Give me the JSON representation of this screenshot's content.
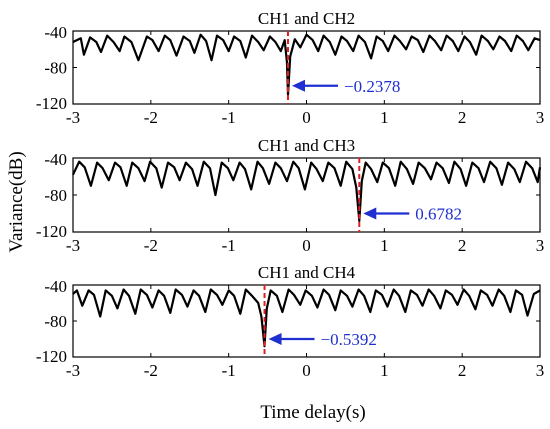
{
  "figure": {
    "ylabel": "Variance(dB)",
    "xlabel": "Time delay(s)"
  },
  "colors": {
    "signal": "#000000",
    "marker_line": "#e02020",
    "annotation": "#1f2fd0"
  },
  "chart_data": [
    {
      "type": "line",
      "title": "CH1 and CH2",
      "xlim": [
        -3,
        3
      ],
      "ylim": [
        -120,
        -40
      ],
      "xticks": [
        "-3",
        "-2",
        "-1",
        "0",
        "1",
        "2",
        "3"
      ],
      "yticks": [
        "-40",
        "-80",
        "-120"
      ],
      "peak_x": -0.2378,
      "peak_label": "−0.2378",
      "series": [
        {
          "x": [
            -3.0,
            -2.9,
            -2.86,
            -2.78,
            -2.7,
            -2.64,
            -2.56,
            -2.48,
            -2.4,
            -2.34,
            -2.25,
            -2.16,
            -2.05,
            -1.98,
            -1.9,
            -1.82,
            -1.75,
            -1.67,
            -1.58,
            -1.5,
            -1.44,
            -1.36,
            -1.29,
            -1.22,
            -1.15,
            -1.07,
            -1.0,
            -0.93,
            -0.85,
            -0.78,
            -0.7,
            -0.62,
            -0.55,
            -0.47,
            -0.4,
            -0.33,
            -0.28,
            -0.25,
            -0.2378,
            -0.21,
            -0.15,
            -0.08,
            0.0,
            0.08,
            0.15,
            0.22,
            0.3,
            0.37,
            0.45,
            0.52,
            0.6,
            0.67,
            0.75,
            0.83,
            0.9,
            0.98,
            1.05,
            1.13,
            1.2,
            1.28,
            1.35,
            1.43,
            1.5,
            1.58,
            1.65,
            1.73,
            1.8,
            1.88,
            1.95,
            2.03,
            2.1,
            2.18,
            2.25,
            2.33,
            2.4,
            2.48,
            2.55,
            2.63,
            2.7,
            2.78,
            2.85,
            2.93,
            3.0
          ],
          "y": [
            -52,
            -48,
            -66,
            -47,
            -52,
            -63,
            -45,
            -52,
            -62,
            -46,
            -52,
            -72,
            -46,
            -50,
            -62,
            -45,
            -50,
            -67,
            -46,
            -51,
            -64,
            -44,
            -51,
            -72,
            -45,
            -50,
            -62,
            -46,
            -51,
            -69,
            -45,
            -52,
            -61,
            -46,
            -52,
            -62,
            -50,
            -75,
            -110,
            -68,
            -49,
            -58,
            -44,
            -50,
            -62,
            -45,
            -52,
            -66,
            -46,
            -51,
            -62,
            -45,
            -52,
            -70,
            -46,
            -51,
            -62,
            -45,
            -51,
            -60,
            -46,
            -50,
            -63,
            -45,
            -51,
            -61,
            -45,
            -51,
            -62,
            -46,
            -52,
            -66,
            -45,
            -51,
            -60,
            -46,
            -51,
            -62,
            -45,
            -51,
            -61,
            -48,
            -50
          ]
        }
      ]
    },
    {
      "type": "line",
      "title": "CH1 and CH3",
      "xlim": [
        -3,
        3
      ],
      "ylim": [
        -120,
        -40
      ],
      "xticks": [
        "-3",
        "-2",
        "-1",
        "0",
        "1",
        "2",
        "3"
      ],
      "yticks": [
        "-40",
        "-80",
        "-120"
      ],
      "peak_x": 0.6782,
      "peak_label": "0.6782",
      "series": [
        {
          "x": [
            -3.0,
            -2.92,
            -2.85,
            -2.77,
            -2.69,
            -2.62,
            -2.54,
            -2.46,
            -2.39,
            -2.31,
            -2.24,
            -2.16,
            -2.08,
            -2.01,
            -1.93,
            -1.86,
            -1.78,
            -1.7,
            -1.63,
            -1.55,
            -1.47,
            -1.4,
            -1.32,
            -1.24,
            -1.17,
            -1.09,
            -1.01,
            -0.94,
            -0.86,
            -0.79,
            -0.71,
            -0.63,
            -0.56,
            -0.48,
            -0.4,
            -0.33,
            -0.25,
            -0.17,
            -0.1,
            -0.02,
            0.06,
            0.13,
            0.21,
            0.28,
            0.36,
            0.44,
            0.51,
            0.59,
            0.64,
            0.6782,
            0.71,
            0.76,
            0.83,
            0.91,
            0.98,
            1.06,
            1.14,
            1.21,
            1.29,
            1.37,
            1.44,
            1.52,
            1.6,
            1.67,
            1.75,
            1.83,
            1.9,
            1.98,
            2.05,
            2.13,
            2.21,
            2.28,
            2.36,
            2.44,
            2.51,
            2.59,
            2.67,
            2.74,
            2.82,
            2.9,
            2.97,
            3.0
          ],
          "y": [
            -58,
            -44,
            -50,
            -70,
            -45,
            -51,
            -64,
            -45,
            -50,
            -70,
            -45,
            -51,
            -65,
            -44,
            -51,
            -72,
            -45,
            -50,
            -64,
            -45,
            -52,
            -70,
            -44,
            -51,
            -80,
            -45,
            -51,
            -64,
            -45,
            -52,
            -74,
            -44,
            -51,
            -68,
            -45,
            -51,
            -65,
            -44,
            -51,
            -74,
            -45,
            -52,
            -65,
            -45,
            -51,
            -70,
            -44,
            -52,
            -72,
            -108,
            -65,
            -45,
            -52,
            -66,
            -45,
            -51,
            -70,
            -44,
            -52,
            -68,
            -45,
            -51,
            -63,
            -45,
            -51,
            -67,
            -44,
            -52,
            -70,
            -45,
            -51,
            -66,
            -44,
            -51,
            -69,
            -45,
            -52,
            -66,
            -44,
            -51,
            -66,
            -50
          ]
        }
      ]
    },
    {
      "type": "line",
      "title": "CH1 and CH4",
      "xlim": [
        -3,
        3
      ],
      "ylim": [
        -120,
        -40
      ],
      "xticks": [
        "-3",
        "-2",
        "-1",
        "0",
        "1",
        "2",
        "3"
      ],
      "yticks": [
        "-40",
        "-80",
        "-120"
      ],
      "peak_x": -0.5392,
      "peak_label": "−0.5392",
      "series": [
        {
          "x": [
            -3.0,
            -2.95,
            -2.88,
            -2.8,
            -2.73,
            -2.65,
            -2.58,
            -2.5,
            -2.43,
            -2.35,
            -2.28,
            -2.2,
            -2.13,
            -2.05,
            -1.98,
            -1.9,
            -1.83,
            -1.75,
            -1.68,
            -1.6,
            -1.53,
            -1.45,
            -1.38,
            -1.3,
            -1.23,
            -1.15,
            -1.08,
            -1.0,
            -0.93,
            -0.85,
            -0.78,
            -0.7,
            -0.62,
            -0.58,
            -0.5392,
            -0.51,
            -0.46,
            -0.38,
            -0.31,
            -0.23,
            -0.16,
            -0.08,
            -0.01,
            0.07,
            0.14,
            0.22,
            0.29,
            0.37,
            0.44,
            0.52,
            0.59,
            0.67,
            0.74,
            0.82,
            0.89,
            0.97,
            1.04,
            1.12,
            1.19,
            1.27,
            1.34,
            1.42,
            1.49,
            1.57,
            1.64,
            1.72,
            1.79,
            1.87,
            1.94,
            2.02,
            2.09,
            2.17,
            2.24,
            2.32,
            2.39,
            2.47,
            2.54,
            2.62,
            2.69,
            2.77,
            2.84,
            2.92,
            3.0
          ],
          "y": [
            -50,
            -46,
            -63,
            -46,
            -51,
            -75,
            -46,
            -52,
            -66,
            -45,
            -52,
            -72,
            -45,
            -51,
            -65,
            -46,
            -52,
            -71,
            -45,
            -51,
            -64,
            -46,
            -52,
            -70,
            -45,
            -51,
            -62,
            -46,
            -52,
            -72,
            -45,
            -52,
            -60,
            -75,
            -108,
            -66,
            -46,
            -52,
            -70,
            -45,
            -51,
            -62,
            -46,
            -52,
            -65,
            -45,
            -51,
            -68,
            -46,
            -52,
            -64,
            -45,
            -52,
            -70,
            -46,
            -51,
            -64,
            -45,
            -52,
            -70,
            -46,
            -51,
            -63,
            -45,
            -52,
            -66,
            -46,
            -51,
            -62,
            -45,
            -52,
            -67,
            -46,
            -51,
            -63,
            -45,
            -52,
            -70,
            -46,
            -51,
            -74,
            -50,
            -46
          ]
        }
      ]
    }
  ]
}
